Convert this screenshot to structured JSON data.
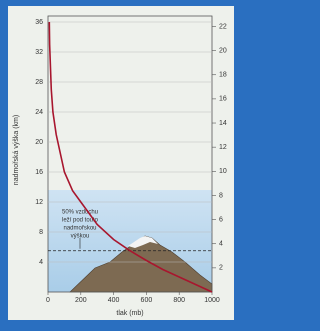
{
  "chart_data": {
    "type": "line",
    "ylabel": "nadmořská výška (km)",
    "xlabel": "tlak (mb)",
    "annotation": [
      "50% vzduchu",
      "leží pod touto",
      "nadmořskou",
      "výškou"
    ],
    "x": [
      8,
      10,
      20,
      30,
      50,
      100,
      150,
      200,
      300,
      400,
      500,
      600,
      700,
      800,
      900,
      1000
    ],
    "series": [
      {
        "color": "#a8162e",
        "values": [
          36,
          33,
          27,
          24,
          21,
          16,
          13.5,
          12,
          9,
          7,
          5.5,
          4.2,
          3,
          2,
          1,
          0
        ]
      }
    ],
    "half_level": 5.5,
    "xlim": [
      0,
      1000
    ],
    "xticks": [
      0,
      200,
      400,
      600,
      800,
      1000
    ],
    "ylim": [
      0,
      36
    ],
    "yticks": [
      4,
      8,
      12,
      16,
      20,
      24,
      28,
      32,
      36
    ],
    "y2lim": [
      0,
      22.37
    ],
    "y2ticks": [
      2,
      4,
      6,
      8,
      10,
      12,
      14,
      16,
      18,
      20,
      22
    ],
    "grid": true
  }
}
